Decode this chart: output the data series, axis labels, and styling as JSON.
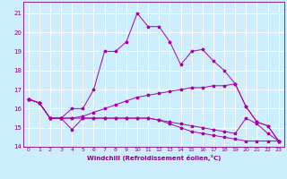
{
  "xlabel": "Windchill (Refroidissement éolien,°C)",
  "background_color": "#cceeff",
  "grid_color": "#ffffff",
  "line_color": "#aa00aa",
  "xlim": [
    -0.5,
    23.5
  ],
  "ylim": [
    14.0,
    21.6
  ],
  "yticks": [
    14,
    15,
    16,
    17,
    18,
    19,
    20,
    21
  ],
  "xticks": [
    0,
    1,
    2,
    3,
    4,
    5,
    6,
    7,
    8,
    9,
    10,
    11,
    12,
    13,
    14,
    15,
    16,
    17,
    18,
    19,
    20,
    21,
    22,
    23
  ],
  "lines": [
    {
      "x": [
        0,
        1,
        2,
        3,
        4,
        5,
        6,
        7,
        8,
        9,
        10,
        11,
        12,
        13,
        14,
        15,
        16,
        17,
        18,
        19,
        20,
        21,
        22,
        23
      ],
      "y": [
        16.5,
        16.3,
        15.5,
        15.5,
        16.0,
        16.0,
        17.0,
        19.0,
        19.0,
        19.5,
        21.0,
        20.3,
        20.3,
        19.5,
        18.3,
        19.0,
        19.1,
        18.5,
        18.0,
        17.3,
        16.1,
        15.3,
        15.1,
        14.3
      ]
    },
    {
      "x": [
        0,
        1,
        2,
        3,
        4,
        5,
        6,
        7,
        8,
        9,
        10,
        11,
        12,
        13,
        14,
        15,
        16,
        17,
        18,
        19,
        20,
        21,
        22,
        23
      ],
      "y": [
        16.5,
        16.3,
        15.5,
        15.5,
        14.9,
        15.5,
        15.5,
        15.5,
        15.5,
        15.5,
        15.5,
        15.5,
        15.4,
        15.2,
        15.0,
        14.8,
        14.7,
        14.6,
        14.5,
        14.4,
        14.3,
        14.3,
        14.3,
        14.3
      ]
    },
    {
      "x": [
        0,
        1,
        2,
        3,
        4,
        5,
        6,
        7,
        8,
        9,
        10,
        11,
        12,
        13,
        14,
        15,
        16,
        17,
        18,
        19,
        20,
        21,
        22,
        23
      ],
      "y": [
        16.5,
        16.3,
        15.5,
        15.5,
        15.5,
        15.6,
        15.8,
        16.0,
        16.2,
        16.4,
        16.6,
        16.7,
        16.8,
        16.9,
        17.0,
        17.1,
        17.1,
        17.2,
        17.2,
        17.3,
        16.1,
        15.3,
        15.1,
        14.3
      ]
    },
    {
      "x": [
        0,
        1,
        2,
        3,
        4,
        5,
        6,
        7,
        8,
        9,
        10,
        11,
        12,
        13,
        14,
        15,
        16,
        17,
        18,
        19,
        20,
        21,
        22,
        23
      ],
      "y": [
        16.5,
        16.3,
        15.5,
        15.5,
        15.5,
        15.5,
        15.5,
        15.5,
        15.5,
        15.5,
        15.5,
        15.5,
        15.4,
        15.3,
        15.2,
        15.1,
        15.0,
        14.9,
        14.8,
        14.7,
        15.5,
        15.2,
        14.7,
        14.3
      ]
    }
  ]
}
